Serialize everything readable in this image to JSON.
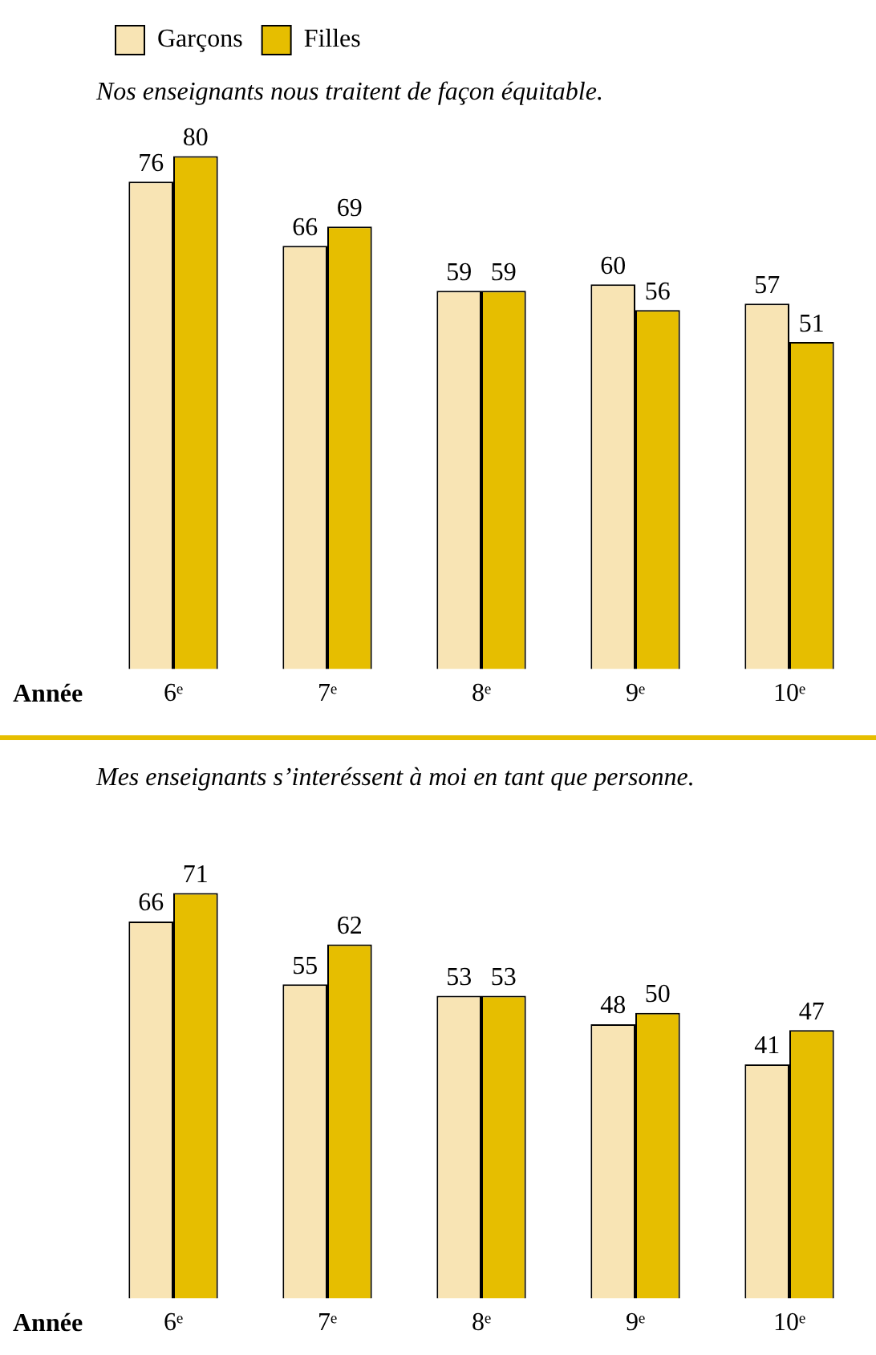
{
  "chart_data": [
    {
      "type": "bar",
      "title": "Nos enseignants nous traitent de façon équitable.",
      "xlabel": "Année",
      "categories": [
        "6ᵉ",
        "7ᵉ",
        "8ᵉ",
        "9ᵉ",
        "10ᵉ"
      ],
      "series": [
        {
          "name": "Garçons",
          "color": "#f8e4b4",
          "values": [
            76,
            66,
            59,
            60,
            57
          ]
        },
        {
          "name": "Filles",
          "color": "#e6be00",
          "values": [
            80,
            69,
            59,
            56,
            51
          ]
        }
      ],
      "data_labels": true,
      "legend": "top left",
      "grid": false
    },
    {
      "type": "bar",
      "title": "Mes enseignants s’interéssent à moi en tant que personne.",
      "xlabel": "Année",
      "categories": [
        "6ᵉ",
        "7ᵉ",
        "8ᵉ",
        "9ᵉ",
        "10ᵉ"
      ],
      "series": [
        {
          "color": "#f8e4b4",
          "values": [
            66,
            55,
            53,
            48,
            41
          ]
        },
        {
          "color": "#e6be00",
          "values": [
            71,
            62,
            53,
            50,
            47
          ]
        }
      ],
      "data_labels": true,
      "legend": false,
      "grid": false
    }
  ]
}
